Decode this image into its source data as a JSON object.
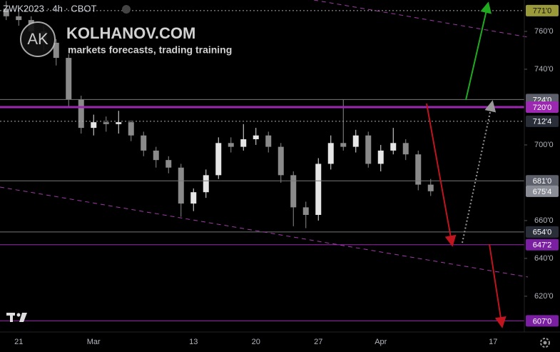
{
  "chart_data": {
    "type": "candlestick",
    "symbol": "ZWK2023 · 4h · CBOT",
    "watermark": {
      "logo": "AK",
      "site": "KOLHANOV.COM",
      "tagline": "markets forecasts, trading training"
    },
    "categories": [
      null,
      "21",
      null,
      null,
      null,
      null,
      null,
      "Mar",
      null,
      null,
      null,
      null,
      null,
      null,
      null,
      "13",
      null,
      null,
      null,
      null,
      "20",
      null,
      null,
      null,
      null,
      "27",
      null,
      null,
      null,
      null,
      "Apr",
      null,
      null,
      null,
      null,
      null,
      null,
      null,
      null,
      "17",
      null,
      null
    ],
    "open": [
      772,
      768,
      766,
      760,
      754,
      746,
      724,
      709,
      712,
      711,
      712,
      705,
      697,
      692,
      688,
      669,
      675,
      684,
      701,
      699,
      703,
      705,
      699,
      684,
      667,
      663,
      690,
      701,
      699,
      705,
      690,
      697,
      701,
      695,
      679,
      null,
      null,
      null,
      null,
      null,
      null,
      null
    ],
    "high": [
      776,
      772,
      768,
      763,
      756,
      748,
      726,
      716,
      715,
      718,
      713,
      707,
      699,
      694,
      690,
      677,
      687,
      704,
      704,
      711,
      709,
      707,
      701,
      686,
      670,
      693,
      705,
      724,
      708,
      707,
      700,
      709,
      703,
      697,
      682,
      null,
      null,
      null,
      null,
      null,
      null,
      null
    ],
    "low": [
      766,
      763,
      757,
      750,
      742,
      720,
      706,
      705,
      707,
      706,
      702,
      694,
      688,
      685,
      662,
      665,
      672,
      682,
      696,
      697,
      700,
      696,
      680,
      657,
      656,
      660,
      687,
      697,
      696,
      688,
      686,
      695,
      692,
      676,
      673,
      null,
      null,
      null,
      null,
      null,
      null,
      null
    ],
    "close": [
      768,
      766,
      760,
      754,
      746,
      724,
      709,
      712,
      711,
      712,
      705,
      697,
      692,
      688,
      669,
      675,
      684,
      701,
      699,
      703,
      705,
      699,
      684,
      667,
      663,
      690,
      701,
      699,
      705,
      690,
      697,
      701,
      695,
      679,
      675.5,
      null,
      null,
      null,
      null,
      null,
      null,
      null
    ],
    "up_color": "#e6e6e6",
    "down_color": "#8a8a8a",
    "ylim": [
      601.1,
      776.6
    ],
    "yticks": [
      {
        "value": 760,
        "label": "760'0"
      },
      {
        "value": 740,
        "label": "740'0"
      },
      {
        "value": 700,
        "label": "700'0"
      },
      {
        "value": 660,
        "label": "660'0"
      },
      {
        "value": 640,
        "label": "640'0"
      },
      {
        "value": 620,
        "label": "620'0"
      }
    ],
    "levels": [
      {
        "value": 771,
        "label": "771'0",
        "color": "#9a9a3a",
        "text_color": "#111",
        "line": "dotted"
      },
      {
        "value": 724,
        "label": "724'0",
        "color": "#5d606b",
        "text_color": "#fff",
        "line": "solid"
      },
      {
        "value": 720,
        "label": "720'0",
        "color": "#9c27b0",
        "text_color": "#fff",
        "line": "thick"
      },
      {
        "value": 712.5,
        "label": "712'4",
        "color": "#2a2e39",
        "text_color": "#fff",
        "line": "dotted"
      },
      {
        "value": 681,
        "label": "681'0",
        "color": "#5d606b",
        "text_color": "#fff",
        "line": "solid"
      },
      {
        "value": 675.5,
        "label": "675'4",
        "color": "#8a8d96",
        "text_color": "#fff",
        "line": "none"
      },
      {
        "value": 654,
        "label": "654'0",
        "color": "#2a2e39",
        "text_color": "#fff",
        "line": "solid"
      },
      {
        "value": 647.25,
        "label": "647'2",
        "color": "#7b1fa2",
        "text_color": "#fff",
        "line": "purple"
      },
      {
        "value": 607,
        "label": "607'0",
        "color": "#7b1fa2",
        "text_color": "#fff",
        "line": "purple"
      }
    ]
  }
}
